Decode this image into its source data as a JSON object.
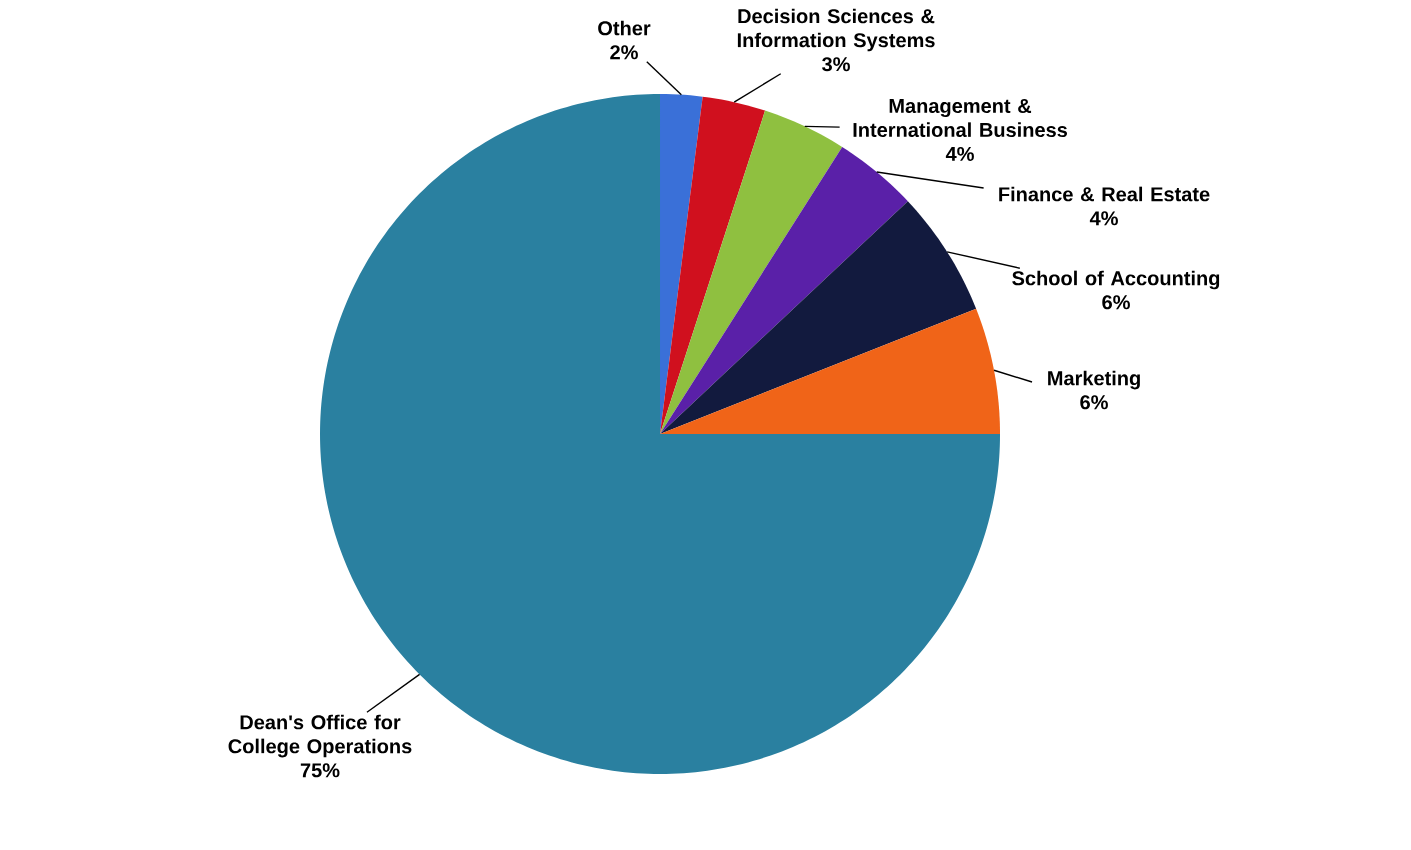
{
  "chart_data": {
    "type": "pie",
    "categories": [
      "Other",
      "Decision Sciences & Information Systems",
      "Management & International Business",
      "Finance & Real Estate",
      "School of Accounting",
      "Marketing",
      "Dean's Office for College Operations"
    ],
    "values": [
      2,
      3,
      4,
      4,
      6,
      6,
      75
    ],
    "colors": [
      "#3a70d8",
      "#d0101e",
      "#8fc040",
      "#5a20a8",
      "#121a3e",
      "#f06418",
      "#2a80a0"
    ],
    "value_labels": [
      "2%",
      "3%",
      "4%",
      "4%",
      "6%",
      "6%",
      "75%"
    ]
  }
}
